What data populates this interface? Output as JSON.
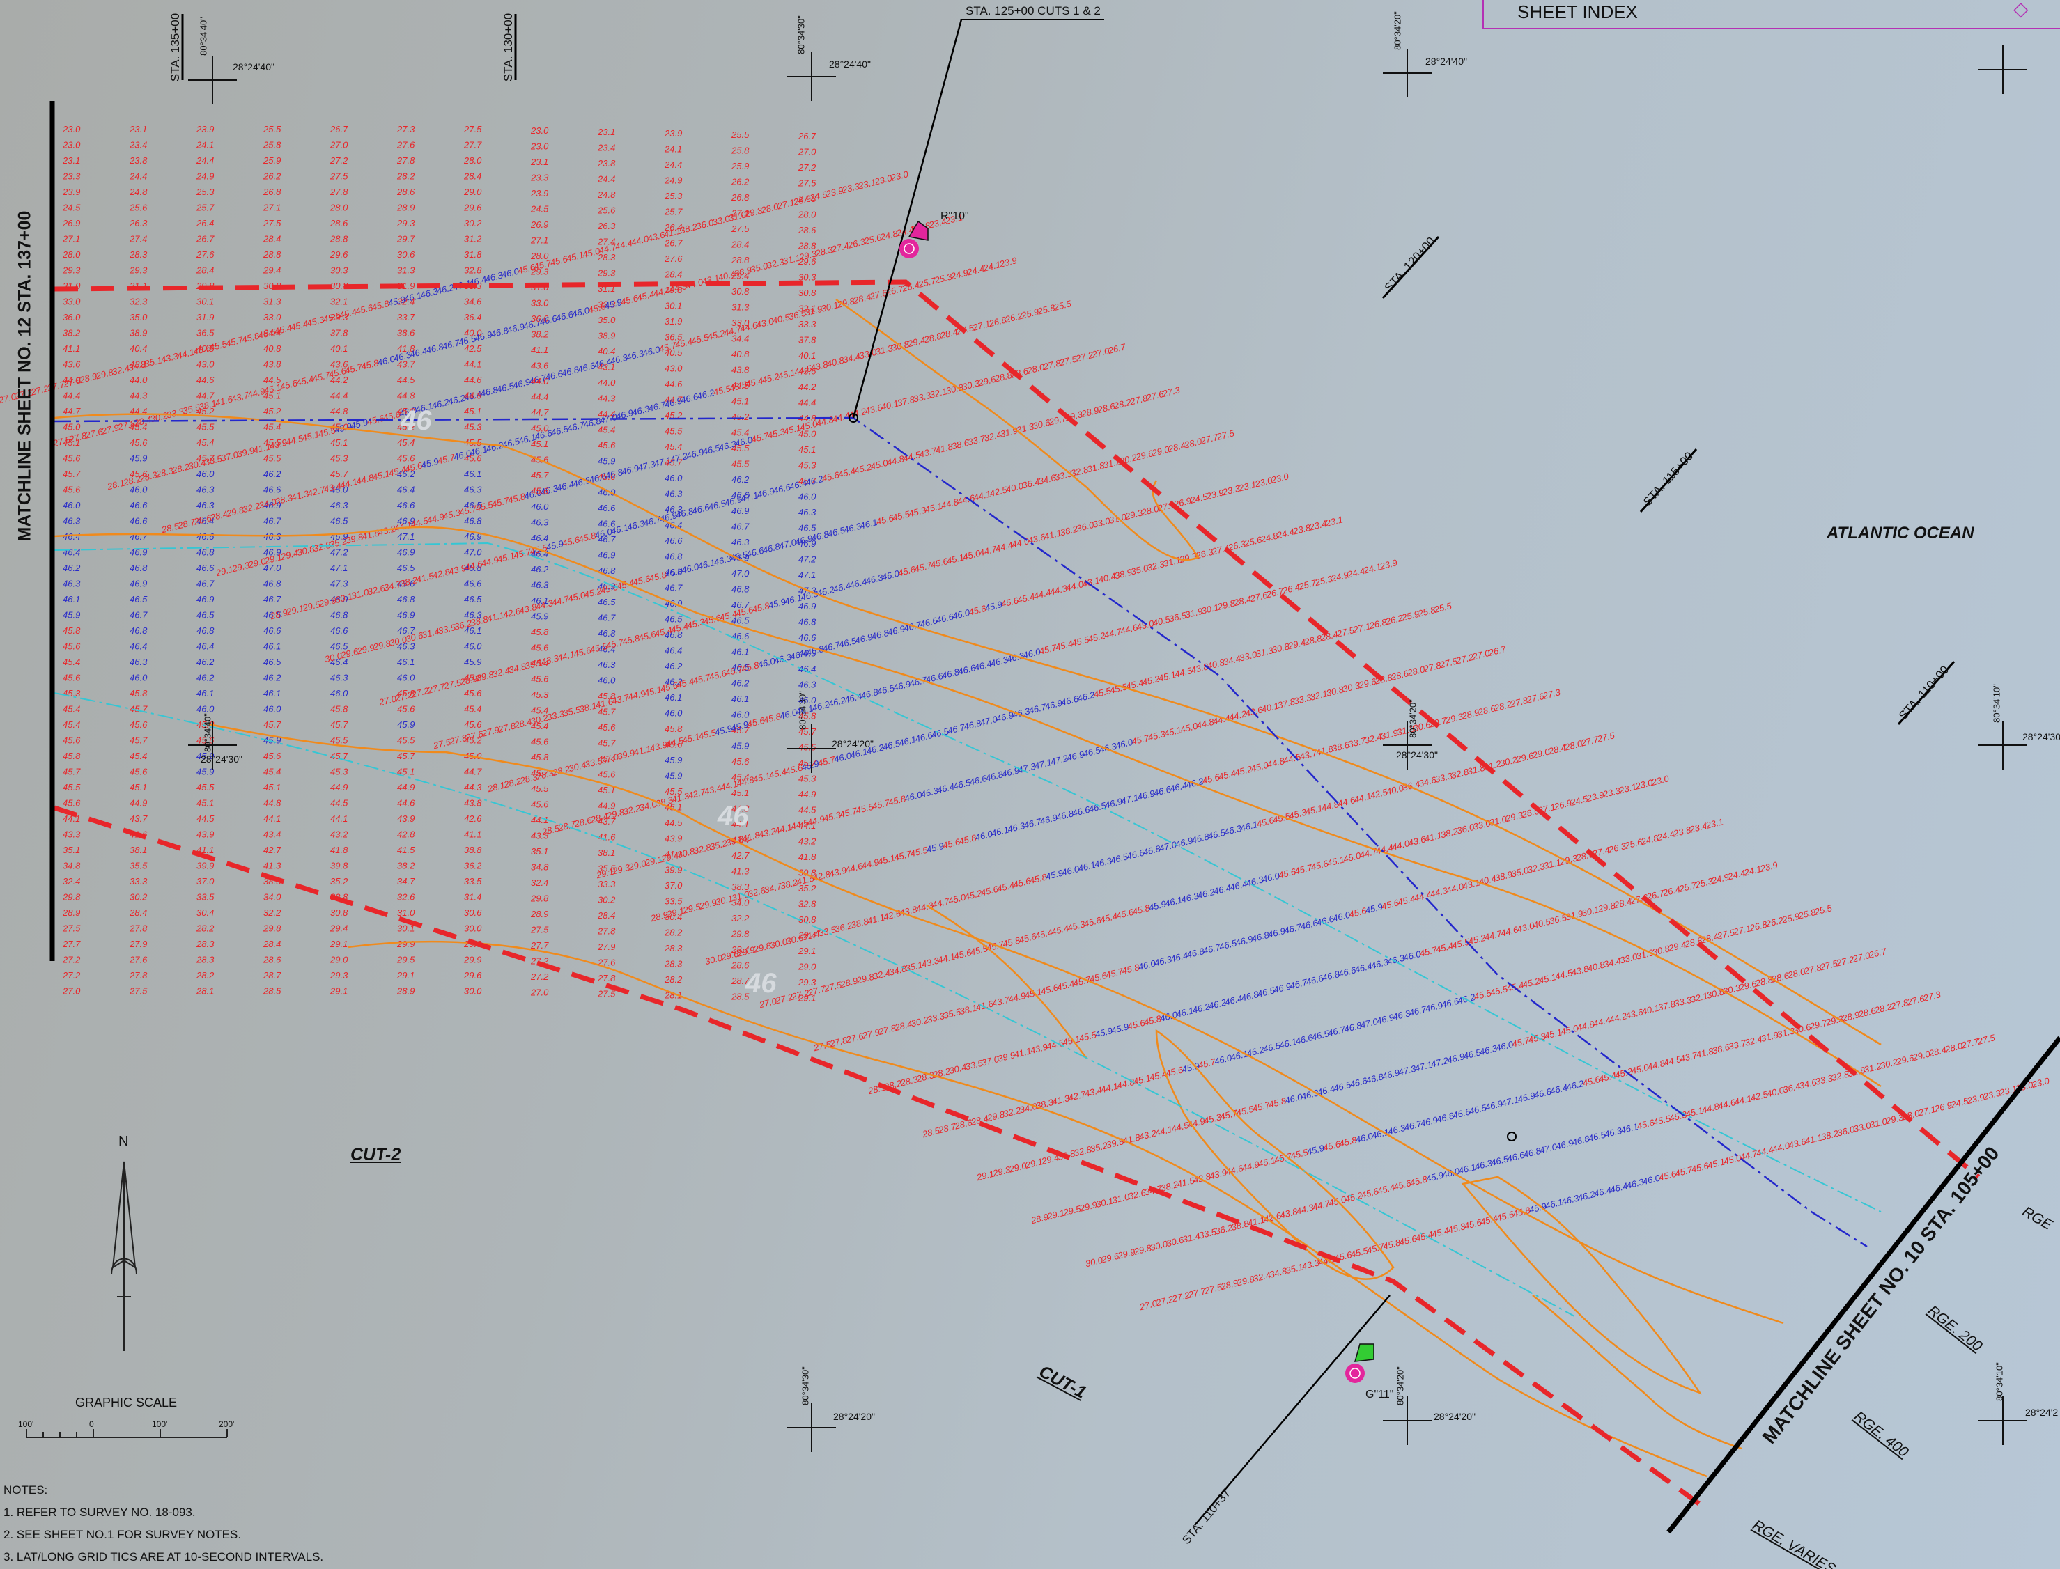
{
  "sheet_index": {
    "title": "SHEET INDEX"
  },
  "matchlines": {
    "left": "MATCHLINE SHEET NO. 12 STA. 137+00",
    "right": "MATCHLINE SHEET NO. 10  STA. 105+00"
  },
  "stations": {
    "top_callout": "STA. 125+00  CUTS 1 & 2",
    "sta_135": "STA. 135+00",
    "sta_130": "STA. 130+00",
    "sta_120": "STA. 120+00",
    "sta_115": "STA. 115+00",
    "sta_110": "STA. 110+00",
    "sta_110_37": "STA. 110+37"
  },
  "water_body": "ATLANTIC OCEAN",
  "cuts": {
    "cut1": "CUT-1",
    "cut2": "CUT-2"
  },
  "ranges": {
    "rge_200": "RGE. 200",
    "rge_400": "RGE. 400",
    "rge_varies": "RGE. VARIES",
    "rge_edge": "RGE"
  },
  "markers": {
    "r10": "R\"10\"",
    "g11": "G\"11\""
  },
  "contour_labels": [
    "46",
    "46",
    "46"
  ],
  "grid_ticks": {
    "lat_2440": "28°24'40\"",
    "lat_2430": "28°24'30\"",
    "lat_2420": "28°24'20\"",
    "lat_2430_edge": "28°24'30\"",
    "lat_242_edge": "28°24'2",
    "lon_3440": "80°34'40\"",
    "lon_3430": "80°34'30\"",
    "lon_3420": "80°34'20\"",
    "lon_3410": "80°34'10\""
  },
  "north_arrow": "N",
  "graphic_scale": {
    "title": "GRAPHIC SCALE",
    "ticks": [
      "100'",
      "0",
      "100'",
      "200'"
    ]
  },
  "notes": {
    "heading": "NOTES:",
    "items": [
      "1.  REFER TO SURVEY NO.  18-093.",
      "2.  SEE SHEET NO.1 FOR SURVEY NOTES.",
      "3.  LAT/LONG GRID TICS ARE AT 10-SECOND INTERVALS."
    ]
  },
  "colors": {
    "limit_line": "#e8262a",
    "channel_centerline": "#2327cc",
    "cyan_line": "#35c6d4",
    "contour": "#f08a1c",
    "shallow_sounding": "#e8262a",
    "deep_sounding": "#2a2cc8",
    "red_marker": "#e3269c",
    "green_marker": "#33cc33"
  },
  "sounding_samples": [
    {
      "col": 0,
      "values": [
        "23.0",
        "23.0",
        "23.1",
        "23.3",
        "23.9",
        "24.5",
        "26.9",
        "27.1",
        "28.0",
        "29.3",
        "31.0",
        "33.0",
        "36.0",
        "38.2",
        "41.1",
        "43.6",
        "44.0",
        "44.4",
        "44.7",
        "45.0",
        "45.1",
        "45.6",
        "45.7",
        "45.6",
        "46.0",
        "46.3",
        "46.4",
        "46.4",
        "46.2",
        "46.3",
        "46.1",
        "45.9",
        "45.8",
        "45.6",
        "45.4",
        "45.6",
        "45.3",
        "45.4",
        "45.4",
        "45.6",
        "45.8",
        "45.7",
        "45.5",
        "45.6",
        "44.1",
        "43.3",
        "35.1",
        "34.8",
        "32.4",
        "29.8",
        "28.9",
        "27.5",
        "27.7",
        "27.2",
        "27.2",
        "27.0"
      ]
    },
    {
      "col": 1,
      "values": [
        "23.1",
        "23.4",
        "23.8",
        "24.4",
        "24.8",
        "25.6",
        "26.3",
        "27.4",
        "28.3",
        "29.3",
        "31.1",
        "32.3",
        "35.0",
        "38.9",
        "40.4",
        "43.1",
        "44.0",
        "44.3",
        "44.4",
        "45.4",
        "45.6",
        "45.9",
        "45.6",
        "46.0",
        "46.6",
        "46.6",
        "46.7",
        "46.9",
        "46.8",
        "46.9",
        "46.5",
        "46.7",
        "46.8",
        "46.4",
        "46.3",
        "46.0",
        "45.8",
        "45.7",
        "45.6",
        "45.7",
        "45.4",
        "45.6",
        "45.1",
        "44.9",
        "43.7",
        "41.6",
        "38.1",
        "35.5",
        "33.3",
        "30.2",
        "28.4",
        "27.8",
        "27.9",
        "27.6",
        "27.8",
        "27.5"
      ]
    },
    {
      "col": 2,
      "values": [
        "23.9",
        "24.1",
        "24.4",
        "24.9",
        "25.3",
        "25.7",
        "26.4",
        "26.7",
        "27.6",
        "28.4",
        "29.8",
        "30.1",
        "31.9",
        "36.5",
        "40.5",
        "43.0",
        "44.6",
        "44.7",
        "45.2",
        "45.5",
        "45.4",
        "45.7",
        "46.0",
        "46.3",
        "46.3",
        "46.4",
        "46.6",
        "46.8",
        "46.6",
        "46.7",
        "46.9",
        "46.5",
        "46.8",
        "46.4",
        "46.2",
        "46.2",
        "46.1",
        "46.0",
        "45.8",
        "45.6",
        "45.9",
        "45.9",
        "45.5",
        "45.1",
        "44.5",
        "43.9",
        "41.1",
        "39.9",
        "37.0",
        "33.5",
        "30.4",
        "28.2",
        "28.3",
        "28.3",
        "28.2",
        "28.1"
      ]
    },
    {
      "col": 3,
      "values": [
        "25.5",
        "25.8",
        "25.9",
        "26.2",
        "26.8",
        "27.1",
        "27.5",
        "28.4",
        "28.8",
        "29.4",
        "30.8",
        "31.3",
        "33.0",
        "34.4",
        "40.8",
        "43.8",
        "44.5",
        "45.1",
        "45.2",
        "45.4",
        "45.5",
        "45.5",
        "46.2",
        "46.6",
        "46.9",
        "46.7",
        "46.3",
        "46.9",
        "47.0",
        "46.8",
        "46.7",
        "46.5",
        "46.6",
        "46.1",
        "46.5",
        "46.2",
        "46.1",
        "46.0",
        "45.7",
        "45.9",
        "45.6",
        "45.4",
        "45.1",
        "44.8",
        "44.1",
        "43.4",
        "42.7",
        "41.3",
        "38.3",
        "34.0",
        "32.2",
        "29.8",
        "28.4",
        "28.6",
        "28.7",
        "28.5"
      ]
    },
    {
      "col": 4,
      "values": [
        "26.7",
        "27.0",
        "27.2",
        "27.5",
        "27.8",
        "28.0",
        "28.6",
        "28.8",
        "29.6",
        "30.3",
        "30.8",
        "32.1",
        "33.3",
        "37.8",
        "40.1",
        "43.6",
        "44.2",
        "44.4",
        "44.8",
        "45.0",
        "45.1",
        "45.3",
        "45.7",
        "46.0",
        "46.3",
        "46.5",
        "46.9",
        "47.2",
        "47.1",
        "47.3",
        "46.9",
        "46.8",
        "46.6",
        "46.5",
        "46.4",
        "46.3",
        "46.0",
        "45.8",
        "45.7",
        "45.5",
        "45.7",
        "45.3",
        "44.9",
        "44.5",
        "44.1",
        "43.2",
        "41.8",
        "39.8",
        "35.2",
        "32.8",
        "30.8",
        "29.4",
        "29.1",
        "29.0",
        "29.3",
        "29.1"
      ]
    },
    {
      "col": 5,
      "values": [
        "27.3",
        "27.6",
        "27.8",
        "28.2",
        "28.6",
        "28.9",
        "29.3",
        "29.7",
        "30.6",
        "31.3",
        "31.9",
        "32.4",
        "33.7",
        "38.6",
        "41.8",
        "43.7",
        "44.5",
        "44.8",
        "45.0",
        "45.2",
        "45.4",
        "45.6",
        "46.2",
        "46.4",
        "46.6",
        "46.9",
        "47.1",
        "46.9",
        "46.5",
        "46.6",
        "46.8",
        "46.9",
        "46.7",
        "46.3",
        "46.1",
        "46.0",
        "45.8",
        "45.6",
        "45.9",
        "45.5",
        "45.7",
        "45.1",
        "44.9",
        "44.6",
        "43.9",
        "42.8",
        "41.5",
        "38.2",
        "34.7",
        "32.6",
        "31.0",
        "30.1",
        "29.9",
        "29.5",
        "29.1",
        "28.9"
      ]
    },
    {
      "col": 6,
      "values": [
        "27.5",
        "27.7",
        "28.0",
        "28.4",
        "29.0",
        "29.6",
        "30.2",
        "31.2",
        "31.8",
        "32.8",
        "33.3",
        "34.6",
        "36.4",
        "40.0",
        "42.5",
        "44.1",
        "44.6",
        "44.8",
        "45.1",
        "45.3",
        "45.5",
        "45.6",
        "46.1",
        "46.3",
        "46.5",
        "46.8",
        "46.9",
        "47.0",
        "46.8",
        "46.6",
        "46.5",
        "46.3",
        "46.1",
        "46.0",
        "45.9",
        "45.8",
        "45.6",
        "45.4",
        "45.6",
        "45.2",
        "45.0",
        "44.7",
        "44.3",
        "43.8",
        "42.6",
        "41.1",
        "38.8",
        "36.2",
        "33.5",
        "31.4",
        "30.6",
        "30.0",
        "29.8",
        "29.9",
        "29.6",
        "30.0"
      ]
    }
  ]
}
